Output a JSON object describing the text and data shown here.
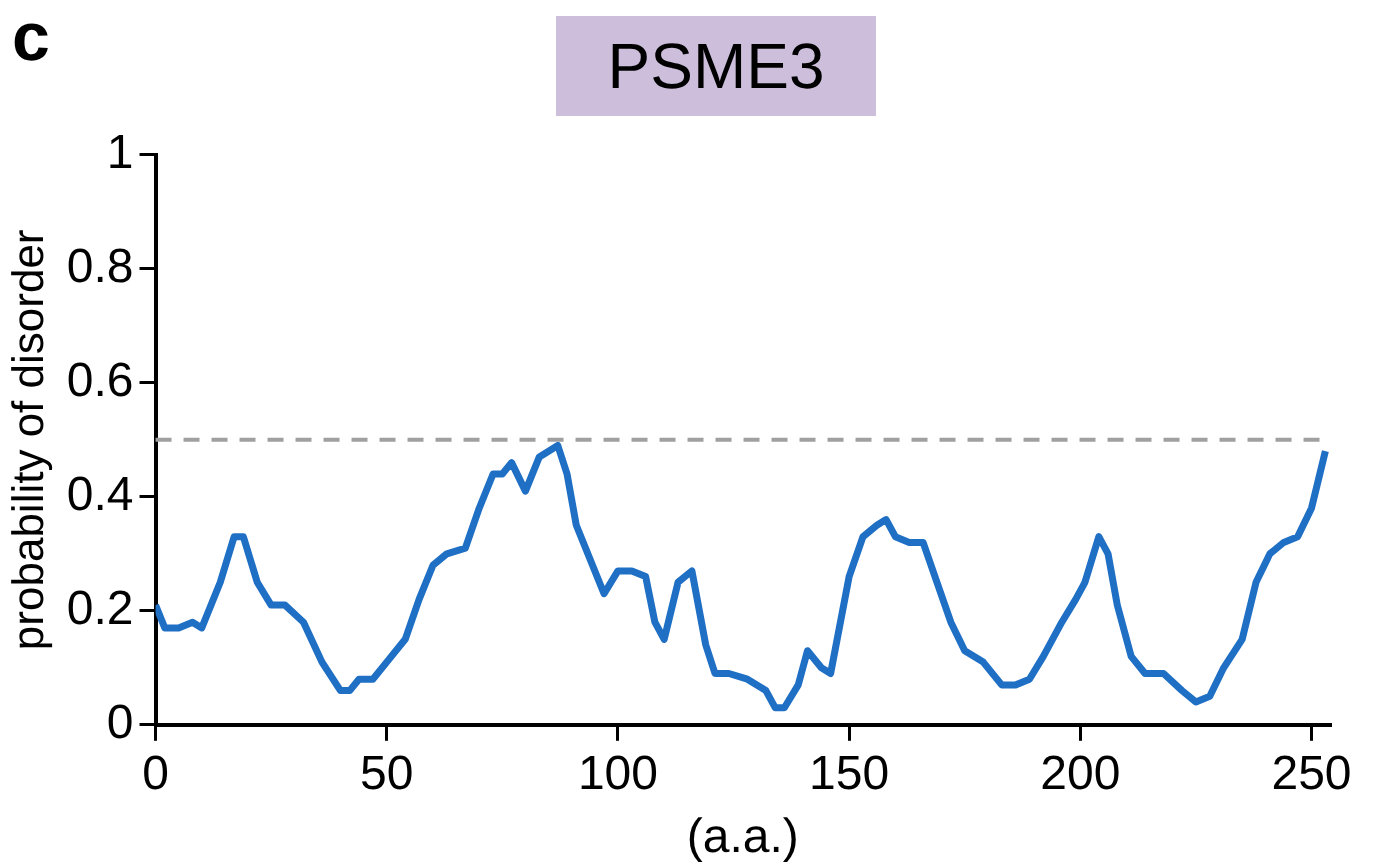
{
  "chart_data": {
    "type": "line",
    "title": "PSME3",
    "xlabel": "(a.a.)",
    "ylabel": "probability of disorder",
    "annotations": [
      "c"
    ],
    "x": [
      0,
      2,
      5,
      8,
      10,
      14,
      17,
      19,
      22,
      25,
      28,
      32,
      36,
      40,
      42,
      44,
      47,
      50,
      54,
      57,
      60,
      63,
      67,
      70,
      73,
      75,
      77,
      80,
      83,
      85,
      87,
      89,
      91,
      94,
      97,
      100,
      103,
      106,
      108,
      110,
      113,
      116,
      119,
      121,
      124,
      128,
      132,
      134,
      136,
      139,
      141,
      144,
      146,
      150,
      153,
      156,
      158,
      160,
      163,
      166,
      169,
      172,
      175,
      179,
      183,
      186,
      189,
      192,
      196,
      199,
      201,
      204,
      206,
      208,
      211,
      214,
      218,
      222,
      225,
      228,
      231,
      235,
      238,
      241,
      244,
      247,
      250,
      253
    ],
    "series": [
      {
        "color": "#1f6fc5",
        "values": [
          0.21,
          0.17,
          0.17,
          0.18,
          0.17,
          0.25,
          0.33,
          0.33,
          0.25,
          0.21,
          0.21,
          0.18,
          0.11,
          0.06,
          0.06,
          0.08,
          0.08,
          0.11,
          0.15,
          0.22,
          0.28,
          0.3,
          0.31,
          0.38,
          0.44,
          0.44,
          0.46,
          0.41,
          0.47,
          0.48,
          0.49,
          0.44,
          0.35,
          0.29,
          0.23,
          0.27,
          0.27,
          0.26,
          0.18,
          0.15,
          0.25,
          0.27,
          0.14,
          0.09,
          0.09,
          0.08,
          0.06,
          0.03,
          0.03,
          0.07,
          0.13,
          0.1,
          0.09,
          0.26,
          0.33,
          0.35,
          0.36,
          0.33,
          0.32,
          0.32,
          0.25,
          0.18,
          0.13,
          0.11,
          0.07,
          0.07,
          0.08,
          0.12,
          0.18,
          0.22,
          0.25,
          0.33,
          0.3,
          0.21,
          0.12,
          0.09,
          0.09,
          0.06,
          0.04,
          0.05,
          0.1,
          0.15,
          0.25,
          0.3,
          0.32,
          0.33,
          0.38,
          0.48
        ]
      }
    ],
    "xlim": [
      0,
      254
    ],
    "xticks": [
      0,
      50,
      100,
      150,
      200,
      250
    ],
    "ylim": [
      0,
      1
    ],
    "yticks": [
      0,
      0.2,
      0.4,
      0.6,
      0.8,
      1
    ],
    "ref_lines": [
      {
        "axis": "y",
        "value": 0.5,
        "color": "#a0a0a0",
        "line_style": "dashed"
      }
    ],
    "grid": false,
    "legend": false,
    "marker": "none",
    "line_style": "solid"
  }
}
